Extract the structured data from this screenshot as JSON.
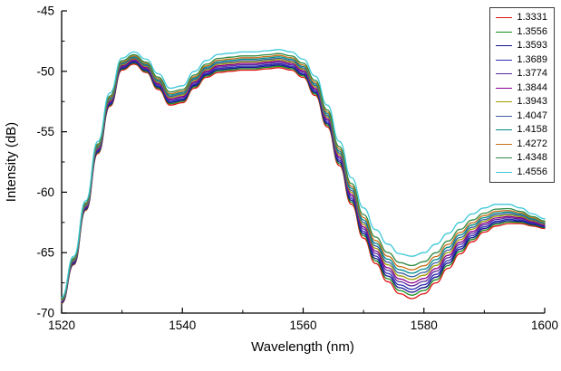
{
  "chart_data": {
    "type": "line",
    "title": "",
    "xlabel": "Wavelength (nm)",
    "ylabel": "Intensity (dB)",
    "xlim": [
      1520,
      1600
    ],
    "ylim": [
      -70,
      -45
    ],
    "x_ticks": [
      1520,
      1540,
      1560,
      1580,
      1600
    ],
    "y_ticks": [
      -45,
      -50,
      -55,
      -60,
      -65,
      -70
    ],
    "x_minor_step": 10,
    "y_minor_step": 2.5,
    "grid": false,
    "legend_position": "top-right",
    "series_rule": "y[i][j] = base_y[j] + series[i].offset * spread[j]",
    "x": [
      1520,
      1522,
      1524,
      1526,
      1528,
      1530,
      1532,
      1534,
      1536,
      1538,
      1540,
      1542,
      1544,
      1546,
      1548,
      1550,
      1552,
      1554,
      1556,
      1558,
      1560,
      1562,
      1564,
      1566,
      1568,
      1570,
      1572,
      1574,
      1576,
      1578,
      1580,
      1582,
      1584,
      1586,
      1588,
      1590,
      1592,
      1594,
      1596,
      1598,
      1600
    ],
    "base_y": [
      -69.2,
      -66.0,
      -61.5,
      -56.8,
      -52.9,
      -49.9,
      -49.4,
      -50.1,
      -51.5,
      -52.8,
      -52.6,
      -51.4,
      -50.5,
      -50.1,
      -50.0,
      -49.9,
      -49.9,
      -49.8,
      -49.7,
      -49.9,
      -50.5,
      -52.0,
      -54.6,
      -57.8,
      -61.0,
      -63.8,
      -65.9,
      -67.4,
      -68.4,
      -68.8,
      -68.4,
      -67.5,
      -66.3,
      -65.1,
      -64.1,
      -63.3,
      -62.8,
      -62.6,
      -62.6,
      -62.8,
      -63.0
    ],
    "spread": [
      0.5,
      0.7,
      0.8,
      1.0,
      1.1,
      1.0,
      1.0,
      1.1,
      1.3,
      1.4,
      1.4,
      1.4,
      1.4,
      1.5,
      1.5,
      1.5,
      1.5,
      1.5,
      1.5,
      1.5,
      1.5,
      1.6,
      1.8,
      2.0,
      2.2,
      2.5,
      2.8,
      3.1,
      3.3,
      3.5,
      3.4,
      3.2,
      2.9,
      2.6,
      2.3,
      2.0,
      1.8,
      1.6,
      1.3,
      1.0,
      0.8
    ],
    "series": [
      {
        "name": "1.3331",
        "color": "#e01212",
        "offset": 0.0
      },
      {
        "name": "1.3556",
        "color": "#1a8a1a",
        "offset": 0.08
      },
      {
        "name": "1.3593",
        "color": "#14148f",
        "offset": 0.15
      },
      {
        "name": "1.3689",
        "color": "#2a2ab0",
        "offset": 0.22
      },
      {
        "name": "1.3774",
        "color": "#5b2a9d",
        "offset": 0.3
      },
      {
        "name": "1.3844",
        "color": "#8b008b",
        "offset": 0.37
      },
      {
        "name": "1.3943",
        "color": "#9c9c00",
        "offset": 0.45
      },
      {
        "name": "1.4047",
        "color": "#3a5f9f",
        "offset": 0.52
      },
      {
        "name": "1.4158",
        "color": "#008b8b",
        "offset": 0.6
      },
      {
        "name": "1.4272",
        "color": "#c8701a",
        "offset": 0.68
      },
      {
        "name": "1.4348",
        "color": "#2f8a45",
        "offset": 0.78
      },
      {
        "name": "1.4556",
        "color": "#3cc8d8",
        "offset": 1.0
      }
    ]
  },
  "colors": {
    "axis": "#000000",
    "background": "#ffffff",
    "legend_border": "#3a3a3a"
  }
}
